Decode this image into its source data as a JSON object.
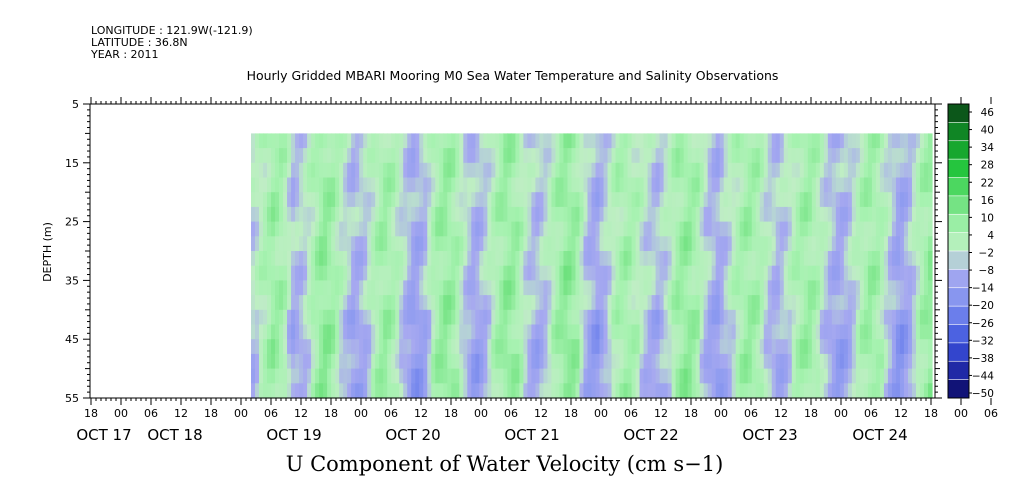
{
  "header": {
    "longitude": "LONGITUDE : 121.9W(-121.9)",
    "latitude": "LATITUDE : 36.8N",
    "year": "YEAR : 2011"
  },
  "chart_data": {
    "type": "heatmap",
    "title": "Hourly Gridded MBARI Mooring M0 Sea Water Temperature and Salinity Observations",
    "xlabel": "",
    "ylabel": "DEPTH (m)",
    "variable_label": "U Component of Water Velocity (cm s−1)",
    "x_hour_ticks": [
      "18",
      "00",
      "06",
      "12",
      "18",
      "00",
      "06",
      "12",
      "18",
      "00",
      "06",
      "12",
      "18",
      "00",
      "06",
      "12",
      "18",
      "00",
      "06",
      "12",
      "18",
      "00",
      "06",
      "12",
      "18",
      "00",
      "06",
      "12",
      "18",
      "00",
      "06",
      "12",
      "18",
      "00",
      "06",
      "12",
      "18"
    ],
    "x_date_labels": [
      "OCT 17",
      "OCT 18",
      "OCT 19",
      "OCT 20",
      "OCT 21",
      "OCT 22",
      "OCT 23",
      "OCT 24"
    ],
    "y_ticks": [
      5,
      15,
      25,
      35,
      45,
      55
    ],
    "ylim": [
      5,
      55
    ],
    "data_depth_range": [
      10,
      55
    ],
    "data_start": "OCT 18 02",
    "colorbar_ticks": [
      "46",
      "40",
      "34",
      "28",
      "22",
      "16",
      "10",
      "4",
      "−2",
      "−8",
      "−14",
      "−20",
      "−26",
      "−32",
      "−38",
      "−44",
      "−50"
    ],
    "colorbar_range": [
      -50,
      46
    ],
    "colors": {
      "strong_positive": "#0b3b14",
      "positive": "#22c43c",
      "weak_positive": "#a6f2b0",
      "weak_negative": "#a7a9f0",
      "negative": "#4a60e0",
      "strong_negative": "#0a0a5e"
    },
    "column_means": [
      -3,
      1,
      5,
      3,
      -6,
      -4,
      2,
      7,
      4,
      -2,
      -7,
      -5,
      1,
      5,
      2,
      -4,
      -9,
      -6,
      3,
      6,
      4,
      -3,
      -8,
      -4,
      2,
      6,
      5,
      -2,
      -6,
      -3,
      3,
      7,
      5,
      -5,
      -9,
      -4,
      2,
      4,
      1,
      -3,
      -6,
      -2,
      4,
      6,
      3,
      -5,
      -8,
      -3,
      2,
      5,
      3,
      -3,
      -6,
      -2,
      3,
      5,
      1,
      -5,
      -8,
      -5,
      1,
      5,
      3,
      -4,
      -10,
      -6,
      2,
      6
    ]
  }
}
